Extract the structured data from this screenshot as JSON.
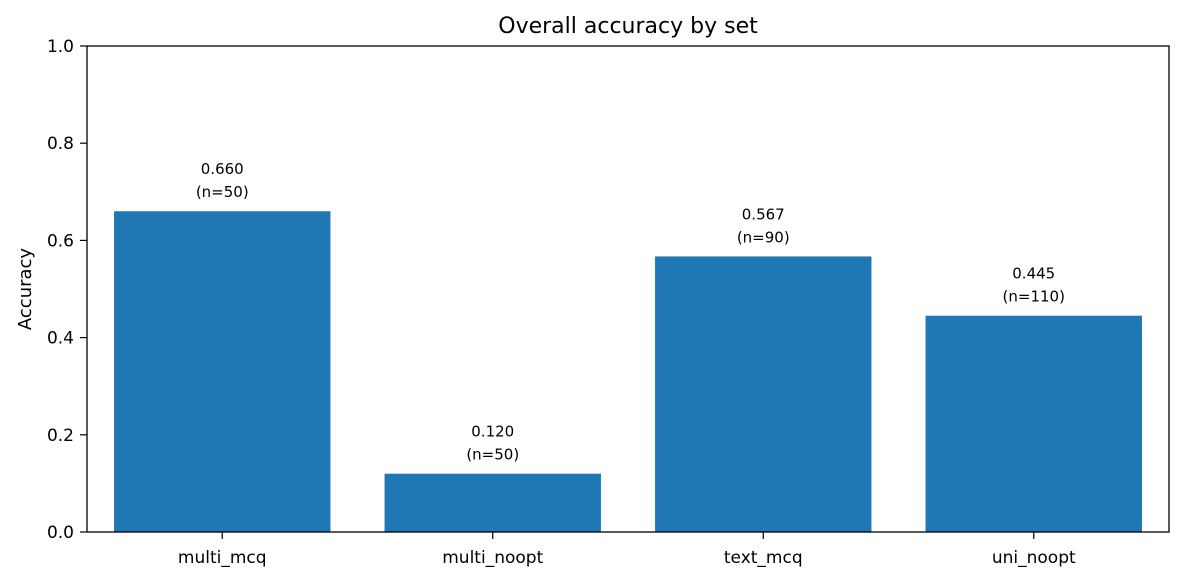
{
  "chart_data": {
    "type": "bar",
    "title": "Overall accuracy by set",
    "xlabel": "",
    "ylabel": "Accuracy",
    "categories": [
      "multi_mcq",
      "multi_noopt",
      "text_mcq",
      "uni_noopt"
    ],
    "values": [
      0.66,
      0.12,
      0.567,
      0.445
    ],
    "value_labels": [
      "0.660",
      "0.120",
      "0.567",
      "0.445"
    ],
    "count_labels": [
      "(n=50)",
      "(n=50)",
      "(n=90)",
      "(n=110)"
    ],
    "ylim": [
      0,
      1.0
    ],
    "yticks": [
      "0.0",
      "0.2",
      "0.4",
      "0.6",
      "0.8",
      "1.0"
    ],
    "grid": false,
    "legend": "none",
    "bar_color": "#1f77b4"
  }
}
